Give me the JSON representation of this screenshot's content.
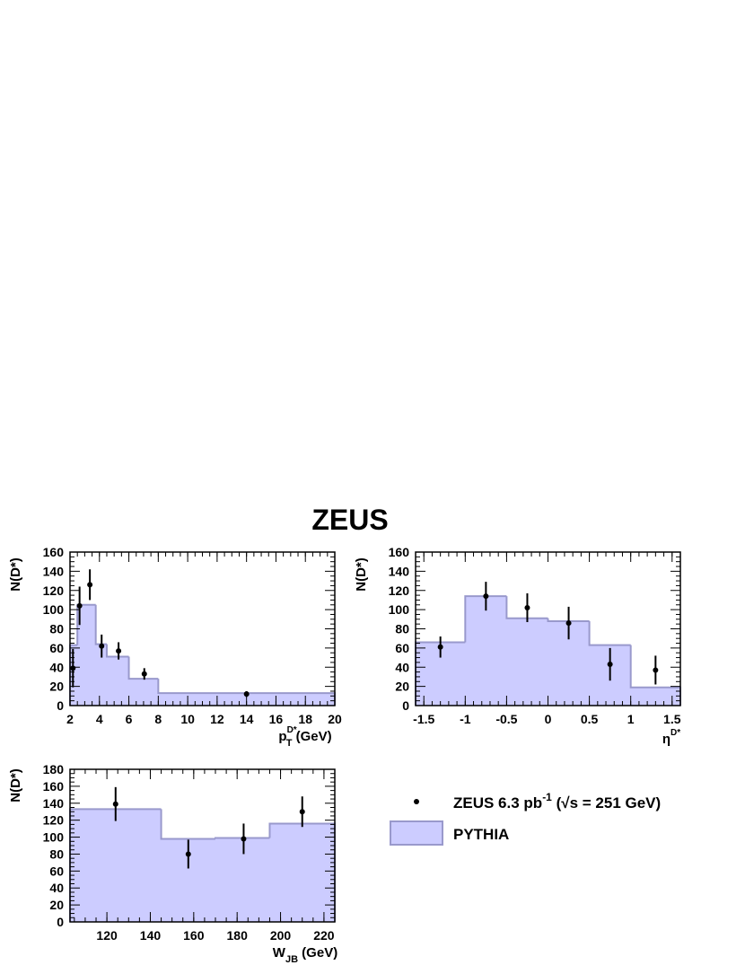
{
  "title": "ZEUS",
  "colors": {
    "mc_fill": "#ccccff",
    "mc_line": "#9999cc",
    "data": "#000000"
  },
  "legend": {
    "data_label": {
      "prefix": "ZEUS 6.3 pb",
      "sup": "-1",
      "mid": " (",
      "sqrt": "√",
      "s_eq": "s = 251 GeV)"
    },
    "mc_label": "PYTHIA"
  },
  "chart_data": [
    {
      "type": "histogram",
      "ylabel": "N(D*)",
      "xlabel": {
        "main": "p",
        "sub": "T",
        "sup": "D*",
        "unit": " (GeV)"
      },
      "xlim": [
        2,
        20
      ],
      "ylim": [
        0,
        160
      ],
      "xticks": [
        2,
        4,
        6,
        8,
        10,
        12,
        14,
        16,
        18,
        20
      ],
      "yticks": [
        0,
        20,
        40,
        60,
        80,
        100,
        120,
        140,
        160
      ],
      "mc": [
        {
          "x0": 2,
          "x1": 2.5,
          "y": 63
        },
        {
          "x0": 2.5,
          "x1": 3.75,
          "y": 105
        },
        {
          "x0": 3.75,
          "x1": 4.5,
          "y": 64
        },
        {
          "x0": 4.5,
          "x1": 6,
          "y": 51
        },
        {
          "x0": 6,
          "x1": 8,
          "y": 28
        },
        {
          "x0": 8,
          "x1": 20,
          "y": 13
        }
      ],
      "data": [
        {
          "x": 2.2,
          "y": 39,
          "err": 20
        },
        {
          "x": 2.65,
          "y": 104,
          "err": 20
        },
        {
          "x": 3.35,
          "y": 126,
          "err": 16
        },
        {
          "x": 4.15,
          "y": 62,
          "err": 12
        },
        {
          "x": 5.3,
          "y": 57,
          "err": 9
        },
        {
          "x": 7.05,
          "y": 33,
          "err": 6
        },
        {
          "x": 14,
          "y": 12,
          "err": 3
        }
      ]
    },
    {
      "type": "histogram",
      "ylabel": "N(D*)",
      "xlabel": {
        "main": "η",
        "sub": "",
        "sup": "D*",
        "unit": ""
      },
      "xlim": [
        -1.6,
        1.6
      ],
      "ylim": [
        0,
        160
      ],
      "xticks": [
        -1.5,
        -1,
        -0.5,
        0,
        0.5,
        1,
        1.5
      ],
      "xtick_labels": [
        "-1.5",
        "-1",
        "-0.5",
        "0",
        "0.5",
        "1",
        "1.5"
      ],
      "yticks": [
        0,
        20,
        40,
        60,
        80,
        100,
        120,
        140,
        160
      ],
      "mc": [
        {
          "x0": -1.6,
          "x1": -1.0,
          "y": 66
        },
        {
          "x0": -1.0,
          "x1": -0.5,
          "y": 114
        },
        {
          "x0": -0.5,
          "x1": 0.0,
          "y": 91
        },
        {
          "x0": 0.0,
          "x1": 0.5,
          "y": 88
        },
        {
          "x0": 0.5,
          "x1": 1.0,
          "y": 63
        },
        {
          "x0": 1.0,
          "x1": 1.6,
          "y": 19
        }
      ],
      "data": [
        {
          "x": -1.3,
          "y": 61,
          "err": 11
        },
        {
          "x": -0.75,
          "y": 114,
          "err": 15
        },
        {
          "x": -0.25,
          "y": 102,
          "err": 15
        },
        {
          "x": 0.25,
          "y": 86,
          "err": 17
        },
        {
          "x": 0.75,
          "y": 43,
          "err": 17
        },
        {
          "x": 1.3,
          "y": 37,
          "err": 15
        }
      ]
    },
    {
      "type": "histogram",
      "ylabel": "N(D*)",
      "xlabel": {
        "main": "W",
        "sub": "JB",
        "sup": "",
        "unit": " (GeV)"
      },
      "xlim": [
        103,
        225
      ],
      "ylim": [
        0,
        180
      ],
      "xticks": [
        120,
        140,
        160,
        180,
        200,
        220
      ],
      "yticks": [
        0,
        20,
        40,
        60,
        80,
        100,
        120,
        140,
        160,
        180
      ],
      "mc": [
        {
          "x0": 103,
          "x1": 145,
          "y": 133
        },
        {
          "x0": 145,
          "x1": 170,
          "y": 98
        },
        {
          "x0": 170,
          "x1": 195,
          "y": 99
        },
        {
          "x0": 195,
          "x1": 225,
          "y": 116
        }
      ],
      "data": [
        {
          "x": 124,
          "y": 139,
          "err": 20
        },
        {
          "x": 157.5,
          "y": 80,
          "err": 17
        },
        {
          "x": 183,
          "y": 98,
          "err": 18
        },
        {
          "x": 210,
          "y": 130,
          "err": 18
        }
      ]
    }
  ]
}
